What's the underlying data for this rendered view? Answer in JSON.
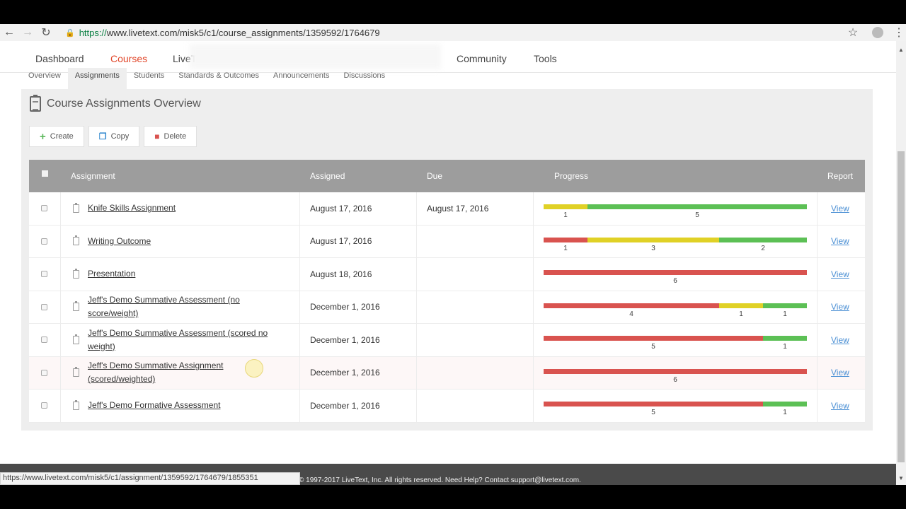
{
  "browser": {
    "url_scheme": "https://",
    "url_rest": "www.livetext.com/misk5/c1/course_assignments/1359592/1764679",
    "status_url": "https://www.livetext.com/misk5/c1/assignment/1359592/1764679/1855351"
  },
  "mainnav": {
    "dashboard": "Dashboard",
    "courses": "Courses",
    "livetext": "LiveT",
    "community": "Community",
    "tools": "Tools"
  },
  "subnav": [
    "Overview",
    "Assignments",
    "Students",
    "Standards & Outcomes",
    "Announcements",
    "Discussions"
  ],
  "page": {
    "title": "Course Assignments Overview",
    "create": "Create",
    "copy": "Copy",
    "delete": "Delete"
  },
  "table": {
    "headers": {
      "assignment": "Assignment",
      "assigned": "Assigned",
      "due": "Due",
      "progress": "Progress",
      "report": "Report"
    },
    "rows": [
      {
        "name": "Knife Skills Assignment",
        "assigned": "August 17, 2016",
        "due": "August 17, 2016",
        "report": "View",
        "progress": [
          {
            "color": "yellow",
            "count": 1
          },
          {
            "color": "green",
            "count": 5
          }
        ]
      },
      {
        "name": "Writing Outcome",
        "assigned": "August 17, 2016",
        "due": "",
        "report": "View",
        "progress": [
          {
            "color": "red",
            "count": 1
          },
          {
            "color": "yellow",
            "count": 3
          },
          {
            "color": "green",
            "count": 2
          }
        ]
      },
      {
        "name": "Presentation",
        "assigned": "August 18, 2016",
        "due": "",
        "report": "View",
        "progress": [
          {
            "color": "red",
            "count": 6
          }
        ]
      },
      {
        "name": "Jeff's Demo Summative Assessment (no score/weight)",
        "assigned": "December 1, 2016",
        "due": "",
        "report": "View",
        "progress": [
          {
            "color": "red",
            "count": 4
          },
          {
            "color": "yellow",
            "count": 1
          },
          {
            "color": "green",
            "count": 1
          }
        ]
      },
      {
        "name": "Jeff's Demo Summative Assessment (scored no weight)",
        "assigned": "December 1, 2016",
        "due": "",
        "report": "View",
        "progress": [
          {
            "color": "red",
            "count": 5
          },
          {
            "color": "green",
            "count": 1
          }
        ]
      },
      {
        "name": "Jeff's Demo Summative Assignment (scored/weighted)",
        "assigned": "December 1, 2016",
        "due": "",
        "report": "View",
        "progress": [
          {
            "color": "red",
            "count": 6
          }
        ]
      },
      {
        "name": "Jeff's Demo Formative Assessment",
        "assigned": "December 1, 2016",
        "due": "",
        "report": "View",
        "progress": [
          {
            "color": "red",
            "count": 5
          },
          {
            "color": "green",
            "count": 1
          }
        ]
      }
    ]
  },
  "colors": {
    "red": "#d9534f",
    "yellow": "#e0d126",
    "green": "#5cc055",
    "accent": "#e1472a",
    "link": "#4a8fd4"
  },
  "footer": {
    "copyright": "© 1997-2017 LiveText, Inc. All rights reserved. Need Help? Contact support@livetext.com."
  }
}
